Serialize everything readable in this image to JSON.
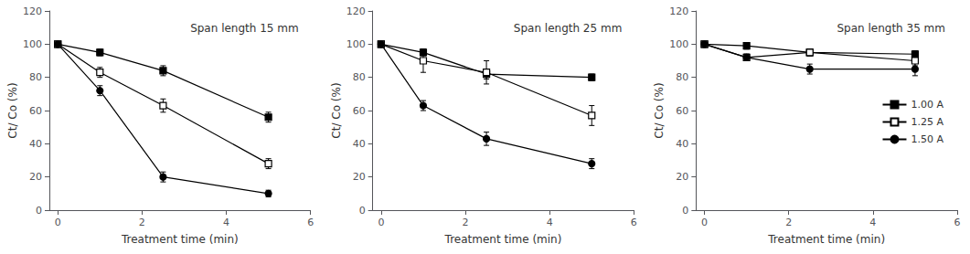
{
  "chart_data": [
    {
      "type": "line",
      "title": "Span length 15 mm",
      "xlabel": "Treatment time (min)",
      "ylabel": "Ct/ Co (%)",
      "xlim": [
        -0.2,
        6
      ],
      "xticks": [
        0,
        2,
        4,
        6
      ],
      "ylim": [
        0,
        120
      ],
      "yticks": [
        0,
        20,
        40,
        60,
        80,
        100,
        120
      ],
      "grid": false,
      "x": [
        0,
        1,
        2.5,
        5
      ],
      "series": [
        {
          "name": "1.00 A",
          "color": "#000000",
          "marker": "square",
          "values": [
            100,
            95,
            84,
            56
          ],
          "yerr": [
            1.5,
            2,
            3,
            3
          ]
        },
        {
          "name": "1.25 A",
          "color": "#000000",
          "marker": "open_square",
          "values": [
            100,
            83,
            63,
            28
          ],
          "yerr": [
            1.5,
            3,
            4,
            3
          ]
        },
        {
          "name": "1.50 A",
          "color": "#000000",
          "marker": "circle",
          "values": [
            100,
            72,
            20,
            10
          ],
          "yerr": [
            1.5,
            3,
            3,
            2
          ]
        }
      ]
    },
    {
      "type": "line",
      "title": "Span length 25 mm",
      "xlabel": "Treatment time (min)",
      "ylabel": "Ct/ Co (%)",
      "xlim": [
        -0.2,
        6
      ],
      "xticks": [
        0,
        2,
        4,
        6
      ],
      "ylim": [
        0,
        120
      ],
      "yticks": [
        0,
        20,
        40,
        60,
        80,
        100,
        120
      ],
      "grid": false,
      "x": [
        0,
        1,
        2.5,
        5
      ],
      "series": [
        {
          "name": "1.00 A",
          "color": "#000000",
          "marker": "square",
          "values": [
            100,
            95,
            82,
            80
          ],
          "yerr": [
            1.5,
            2,
            3,
            2
          ]
        },
        {
          "name": "1.25 A",
          "color": "#000000",
          "marker": "open_square",
          "values": [
            100,
            90,
            83,
            57
          ],
          "yerr": [
            1.5,
            7,
            7,
            6
          ]
        },
        {
          "name": "1.50 A",
          "color": "#000000",
          "marker": "circle",
          "values": [
            100,
            63,
            43,
            28
          ],
          "yerr": [
            1.5,
            3,
            4,
            3
          ]
        }
      ]
    },
    {
      "type": "line",
      "title": "Span length 35 mm",
      "xlabel": "Treatment time (min)",
      "ylabel": "Ct/ Co (%)",
      "xlim": [
        -0.2,
        6
      ],
      "xticks": [
        0,
        2,
        4,
        6
      ],
      "ylim": [
        0,
        120
      ],
      "yticks": [
        0,
        20,
        40,
        60,
        80,
        100,
        120
      ],
      "grid": false,
      "legend": "right",
      "x": [
        0,
        1,
        2.5,
        5
      ],
      "series": [
        {
          "name": "1.00 A",
          "color": "#000000",
          "marker": "square",
          "values": [
            100,
            99,
            95,
            94
          ],
          "yerr": [
            1,
            2,
            2,
            2
          ]
        },
        {
          "name": "1.25 A",
          "color": "#000000",
          "marker": "open_square",
          "values": [
            100,
            92,
            95,
            90
          ],
          "yerr": [
            1,
            2,
            2,
            3
          ]
        },
        {
          "name": "1.50 A",
          "color": "#000000",
          "marker": "circle",
          "values": [
            100,
            92,
            85,
            85
          ],
          "yerr": [
            1,
            2,
            3,
            4
          ]
        }
      ]
    }
  ]
}
